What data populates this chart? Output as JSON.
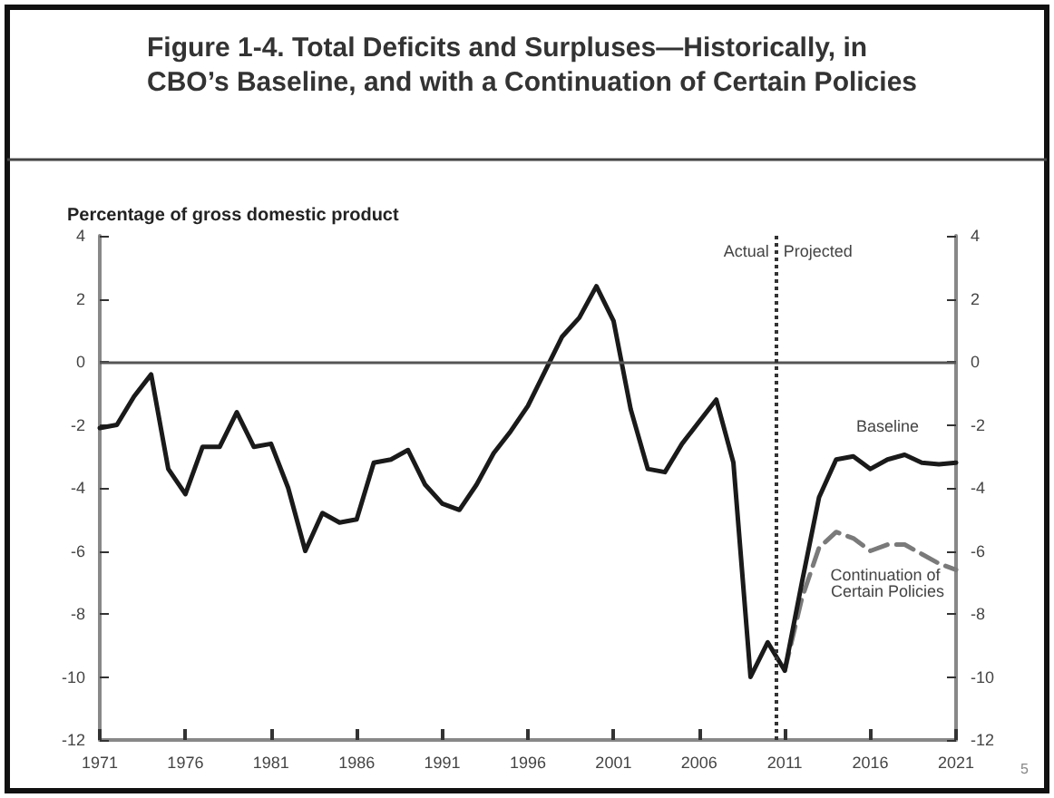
{
  "chart_data": {
    "type": "line",
    "title": "Figure 1-4. Total Deficits and Surpluses—Historically, in CBO’s Baseline, and with a Continuation of Certain Policies",
    "ylabel": "Percentage of gross domestic product",
    "x": [
      1971,
      1972,
      1973,
      1974,
      1975,
      1976,
      1977,
      1978,
      1979,
      1980,
      1981,
      1982,
      1983,
      1984,
      1985,
      1986,
      1987,
      1988,
      1989,
      1990,
      1991,
      1992,
      1993,
      1994,
      1995,
      1996,
      1997,
      1998,
      1999,
      2000,
      2001,
      2002,
      2003,
      2004,
      2005,
      2006,
      2007,
      2008,
      2009,
      2010,
      2011,
      2012,
      2013,
      2014,
      2015,
      2016,
      2017,
      2018,
      2019,
      2020,
      2021
    ],
    "series": [
      {
        "name": "Baseline",
        "color": "#1a1a1a",
        "line_style": "solid",
        "values": [
          -2.1,
          -2.0,
          -1.1,
          -0.4,
          -3.4,
          -4.2,
          -2.7,
          -2.7,
          -1.6,
          -2.7,
          -2.6,
          -4.0,
          -6.0,
          -4.8,
          -5.1,
          -5.0,
          -3.2,
          -3.1,
          -2.8,
          -3.9,
          -4.5,
          -4.7,
          -3.9,
          -2.9,
          -2.2,
          -1.4,
          -0.3,
          0.8,
          1.4,
          2.4,
          1.3,
          -1.5,
          -3.4,
          -3.5,
          -2.6,
          -1.9,
          -1.2,
          -3.2,
          -10.0,
          -8.9,
          -9.8,
          -7.0,
          -4.3,
          -3.1,
          -3.0,
          -3.4,
          -3.1,
          -2.95,
          -3.2,
          -3.25,
          -3.2
        ]
      },
      {
        "name": "Continuation of Certain Policies",
        "color": "#7a7a7a",
        "line_style": "dashed",
        "x": [
          2011,
          2012,
          2013,
          2014,
          2015,
          2016,
          2017,
          2018,
          2019,
          2020,
          2021
        ],
        "values": [
          -9.8,
          -7.5,
          -5.9,
          -5.4,
          -5.6,
          -6.0,
          -5.8,
          -5.8,
          -6.1,
          -6.4,
          -6.6
        ]
      }
    ],
    "xlim": [
      1971,
      2021
    ],
    "xticks": [
      1971,
      1976,
      1981,
      1986,
      1991,
      1996,
      2001,
      2006,
      2011,
      2016,
      2021
    ],
    "ylim": [
      -12,
      4
    ],
    "yticks": [
      -12,
      -10,
      -8,
      -6,
      -4,
      -2,
      0,
      2,
      4
    ],
    "y2lim": [
      -12,
      4
    ],
    "y2ticks": [
      -12,
      -10,
      -8,
      -6,
      -4,
      -2,
      0,
      2,
      4
    ],
    "ref_lines": [
      {
        "axis": "y",
        "value": 0,
        "color": "#555555",
        "line_style": "solid"
      },
      {
        "axis": "x",
        "value": 2010.5,
        "color": "#333333",
        "line_style": "dotted"
      }
    ],
    "annotations": [
      {
        "text": "Actual",
        "x": 2010.5,
        "y": 4
      },
      {
        "text": "Projected",
        "x": 2010.5,
        "y": 4
      },
      "5"
    ],
    "grid": false,
    "legend": false
  }
}
